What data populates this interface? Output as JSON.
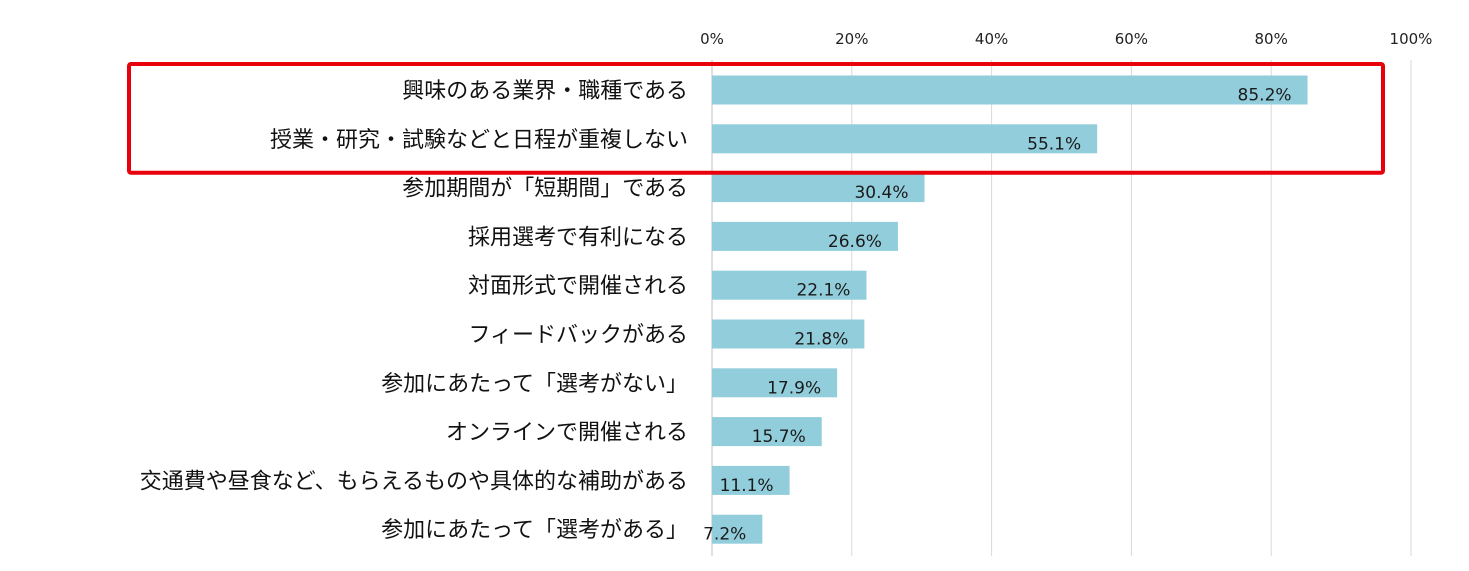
{
  "chart_data": {
    "type": "bar",
    "orientation": "horizontal",
    "categories": [
      "興味のある業界・職種である",
      "授業・研究・試験などと日程が重複しない",
      "参加期間が「短期間」である",
      "採用選考で有利になる",
      "対面形式で開催される",
      "フィードバックがある",
      "参加にあたって「選考がない」",
      "オンラインで開催される",
      "交通費や昼食など、もらえるものや具体的な補助がある",
      "参加にあたって「選考がある」"
    ],
    "values": [
      85.2,
      55.1,
      30.4,
      26.6,
      22.1,
      21.8,
      17.9,
      15.7,
      11.1,
      7.2
    ],
    "value_labels": [
      "85.2%",
      "55.1%",
      "30.4%",
      "26.6%",
      "22.1%",
      "21.8%",
      "17.9%",
      "15.7%",
      "11.1%",
      "7.2%"
    ],
    "x_ticks": [
      0,
      20,
      40,
      60,
      80,
      100
    ],
    "x_tick_labels": [
      "0%",
      "20%",
      "40%",
      "60%",
      "80%",
      "100%"
    ],
    "xlim": [
      0,
      100
    ],
    "axis_position": "top",
    "grid": true,
    "highlighted_categories": [
      0,
      1
    ],
    "title": "",
    "xlabel": "",
    "ylabel": ""
  },
  "colors": {
    "bar": "#92CDDC",
    "grid": "#D9D9D9",
    "highlight": "#E8000B"
  }
}
